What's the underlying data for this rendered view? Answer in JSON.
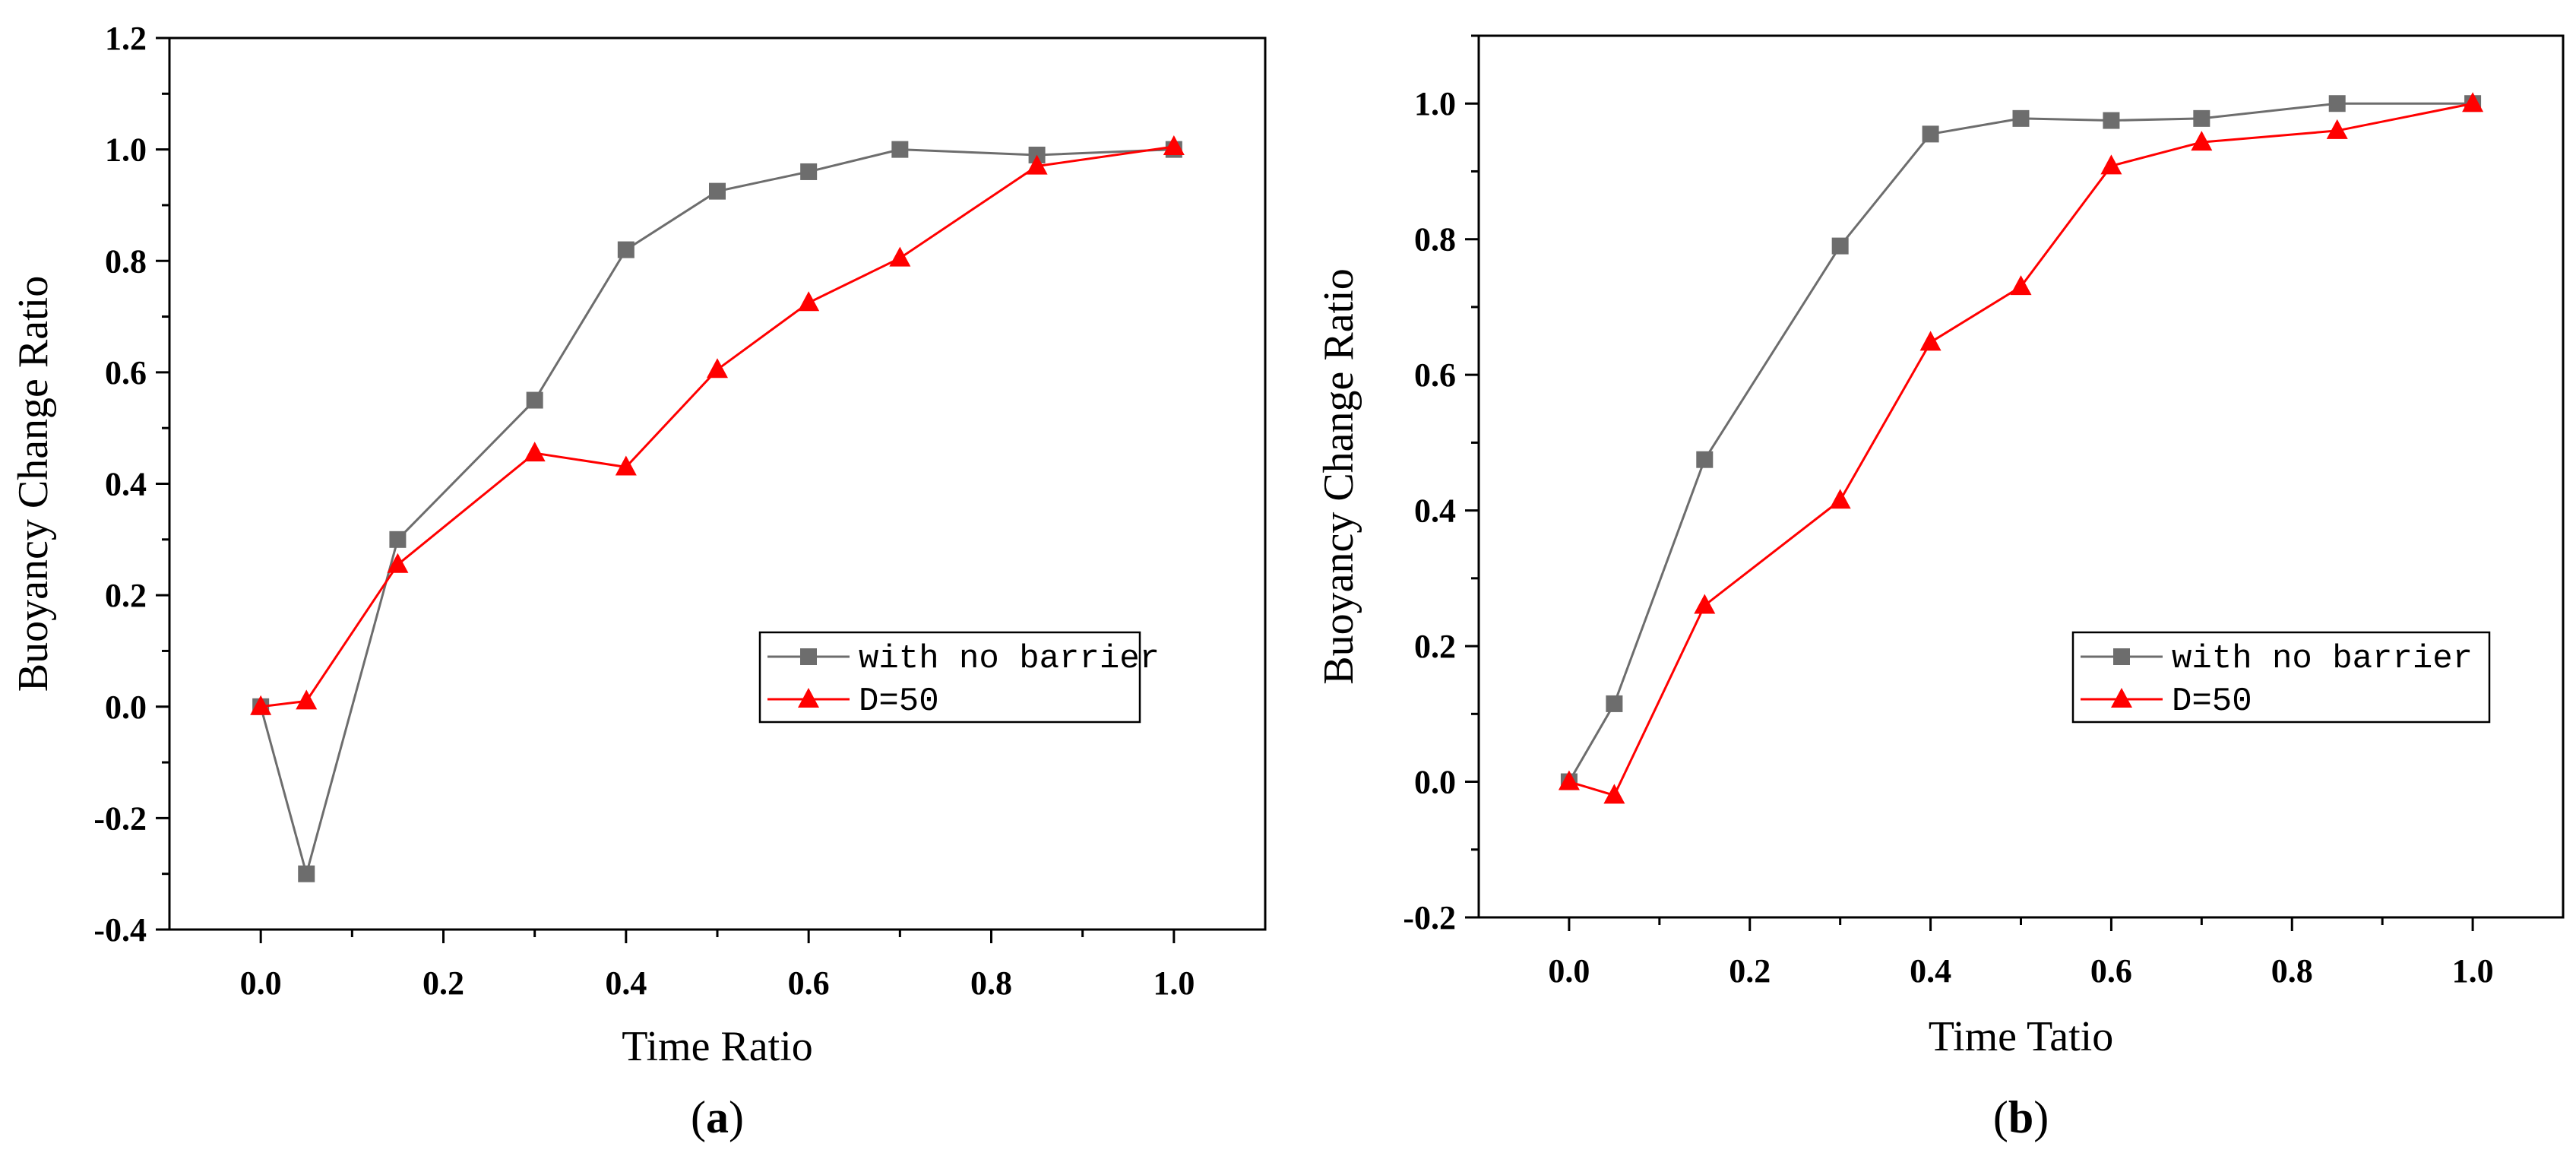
{
  "chart_data": [
    {
      "type": "line",
      "panel_label": "a",
      "title": "",
      "xlabel": "Time Ratio",
      "ylabel": "Buoyancy Change Ratio",
      "xlim": [
        -0.1,
        1.1
      ],
      "ylim": [
        -0.4,
        1.2
      ],
      "xticks": [
        0.0,
        0.2,
        0.4,
        0.6,
        0.8,
        1.0
      ],
      "xtick_labels": [
        "0.0",
        "0.2",
        "0.4",
        "0.6",
        "0.8",
        "1.0"
      ],
      "yticks": [
        -0.4,
        -0.2,
        0.0,
        0.2,
        0.4,
        0.6,
        0.8,
        1.0,
        1.2
      ],
      "ytick_labels": [
        "-0.4",
        "-0.2",
        "0.0",
        "0.2",
        "0.4",
        "0.6",
        "0.8",
        "1.0",
        "1.2"
      ],
      "grid": false,
      "legend_position": "lower-right",
      "series": [
        {
          "name": "with no barrier",
          "color": "#6d6d6d",
          "marker": "square",
          "x": [
            0.0,
            0.05,
            0.15,
            0.3,
            0.4,
            0.5,
            0.6,
            0.7,
            0.85,
            1.0
          ],
          "y": [
            0.0,
            -0.3,
            0.3,
            0.55,
            0.82,
            0.925,
            0.96,
            1.0,
            0.99,
            1.0
          ]
        },
        {
          "name": "D=50",
          "color": "#ff0000",
          "marker": "triangle",
          "x": [
            0.0,
            0.05,
            0.15,
            0.3,
            0.4,
            0.5,
            0.6,
            0.7,
            0.85,
            1.0
          ],
          "y": [
            0.0,
            0.01,
            0.255,
            0.455,
            0.43,
            0.605,
            0.725,
            0.805,
            0.97,
            1.005
          ]
        }
      ]
    },
    {
      "type": "line",
      "panel_label": "b",
      "title": "",
      "xlabel": "Time Tatio",
      "ylabel": "Buoyancy Change Ratio",
      "xlim": [
        -0.1,
        1.1
      ],
      "ylim": [
        -0.2,
        1.1
      ],
      "xticks": [
        0.0,
        0.2,
        0.4,
        0.6,
        0.8,
        1.0
      ],
      "xtick_labels": [
        "0.0",
        "0.2",
        "0.4",
        "0.6",
        "0.8",
        "1.0"
      ],
      "yticks": [
        -0.2,
        0.0,
        0.2,
        0.4,
        0.6,
        0.8,
        1.0
      ],
      "ytick_labels": [
        "-0.2",
        "0.0",
        "0.2",
        "0.4",
        "0.6",
        "0.8",
        "1.0"
      ],
      "grid": false,
      "legend_position": "lower-right",
      "series": [
        {
          "name": "with no barrier",
          "color": "#6d6d6d",
          "marker": "square",
          "x": [
            0.0,
            0.05,
            0.15,
            0.3,
            0.4,
            0.5,
            0.6,
            0.7,
            0.85,
            1.0
          ],
          "y": [
            0.0,
            0.115,
            0.475,
            0.79,
            0.955,
            0.978,
            0.975,
            0.978,
            1.0,
            1.0
          ]
        },
        {
          "name": "D=50",
          "color": "#ff0000",
          "marker": "triangle",
          "x": [
            0.0,
            0.05,
            0.15,
            0.3,
            0.4,
            0.5,
            0.6,
            0.7,
            0.85,
            1.0
          ],
          "y": [
            0.0,
            -0.02,
            0.26,
            0.415,
            0.648,
            0.73,
            0.908,
            0.943,
            0.96,
            1.0
          ]
        }
      ]
    }
  ]
}
